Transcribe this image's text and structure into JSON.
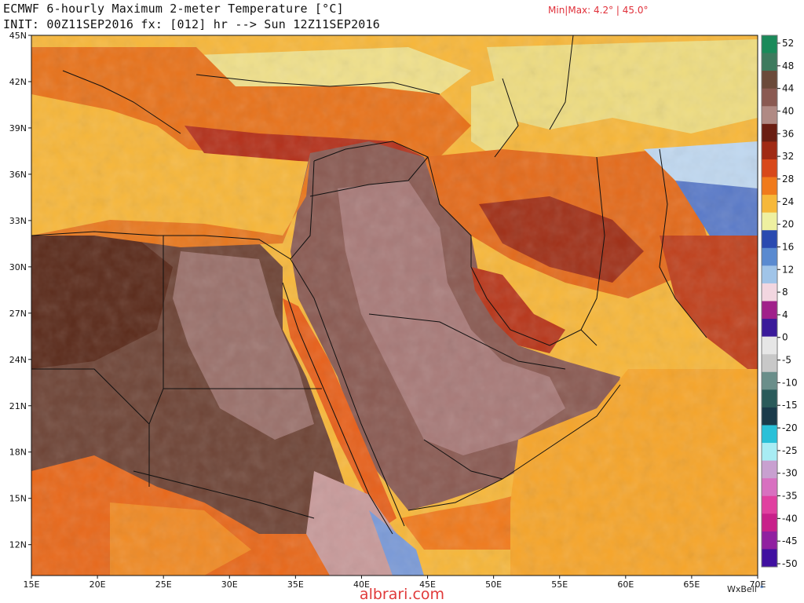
{
  "header": {
    "title_line1": "ECMWF 6-hourly Maximum 2-meter Temperature [°C]",
    "title_line2": "INIT: 00Z11SEP2016 fx: [012] hr --> Sun 12Z11SEP2016",
    "minmax": "Min|Max: 4.2° | 45.0°"
  },
  "map": {
    "lon_range": [
      15,
      70
    ],
    "lat_range": [
      10,
      45
    ],
    "lat_ticks": [
      "45N",
      "42N",
      "39N",
      "36N",
      "33N",
      "30N",
      "27N",
      "24N",
      "21N",
      "18N",
      "15N",
      "12N"
    ],
    "lat_tick_values": [
      45,
      42,
      39,
      36,
      33,
      30,
      27,
      24,
      21,
      18,
      15,
      12
    ],
    "lon_ticks": [
      "15E",
      "20E",
      "25E",
      "30E",
      "35E",
      "40E",
      "45E",
      "50E",
      "55E",
      "60E",
      "65E",
      "70E"
    ],
    "lon_tick_values": [
      15,
      20,
      25,
      30,
      35,
      40,
      45,
      50,
      55,
      60,
      65,
      70
    ]
  },
  "colorbar": {
    "labels": [
      "52",
      "48",
      "44",
      "40",
      "36",
      "32",
      "28",
      "24",
      "20",
      "16",
      "12",
      "8",
      "4",
      "0",
      "-5",
      "-10",
      "-15",
      "-20",
      "-25",
      "-30",
      "-35",
      "-40",
      "-45",
      "-50"
    ],
    "colors": [
      "#1a8a5a",
      "#3e7a5e",
      "#6b4a3a",
      "#8a5a52",
      "#b08a84",
      "#6a1e12",
      "#a02a14",
      "#d8481a",
      "#f07a1c",
      "#f6b83a",
      "#eef0a0",
      "#2a4ab0",
      "#5a8ad0",
      "#a0c4e8",
      "#f2d6e0",
      "#a0208a",
      "#3a1a9a",
      "#e6e6e6",
      "#c8c8c8",
      "#6a8e8a",
      "#2a5a5a",
      "#1a3a4a",
      "#2ac0d8",
      "#a8ecf4",
      "#c8a0d0",
      "#d870c0",
      "#e040a0",
      "#c8208a",
      "#9020a0",
      "#4010a0"
    ]
  },
  "credit": "WxBell",
  "watermark": "albrari.com"
}
